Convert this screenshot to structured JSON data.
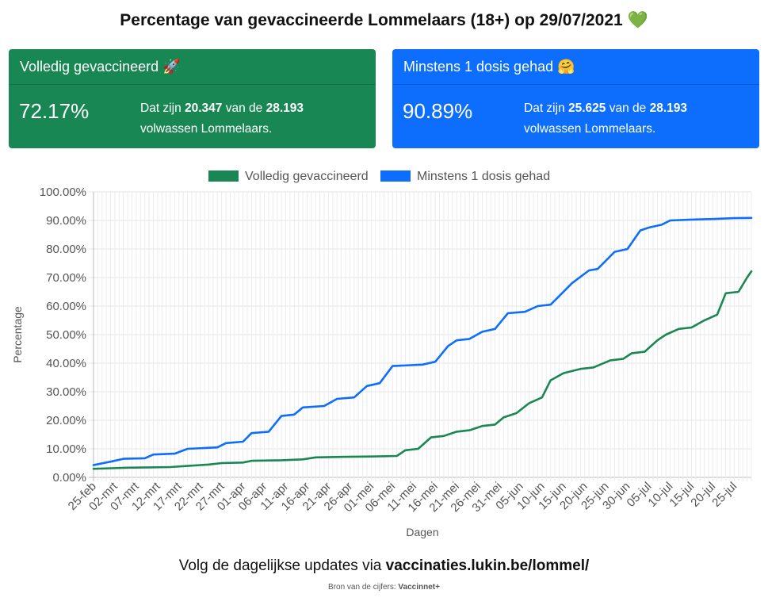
{
  "header": {
    "title": "Percentage van gevaccineerde Lommelaars (18+) op 29/07/2021",
    "title_icon": "💚"
  },
  "cards": [
    {
      "header": "Volledig gevaccineerd",
      "icon": "🚀",
      "percentage": "72.17%",
      "text_prefix": "Dat zijn",
      "count": "20.347",
      "text_middle": "van de",
      "total": "28.193",
      "text_suffix": "volwassen Lommelaars.",
      "color": "#198754"
    },
    {
      "header": "Minstens 1 dosis gehad",
      "icon": "🤗",
      "percentage": "90.89%",
      "text_prefix": "Dat zijn",
      "count": "25.625",
      "text_middle": "van de",
      "total": "28.193",
      "text_suffix": "volwassen Lommelaars.",
      "color": "#0d6efd"
    }
  ],
  "footer": {
    "line1_prefix": "Volg de dagelijkse updates via",
    "line1_link": "vaccinaties.lukin.be/lommel/",
    "line2_prefix": "Bron van de cijfers:",
    "line2_source": "Vaccinnet+"
  },
  "chart_data": {
    "type": "line",
    "title": "",
    "xlabel": "Dagen",
    "ylabel": "Percentage",
    "ylim": [
      0,
      100
    ],
    "y_ticks": [
      "0.00%",
      "10.00%",
      "20.00%",
      "30.00%",
      "40.00%",
      "50.00%",
      "60.00%",
      "70.00%",
      "80.00%",
      "90.00%",
      "100.00%"
    ],
    "x_ticks": [
      "25-feb",
      "02-mrt",
      "07-mrt",
      "12-mrt",
      "17-mrt",
      "22-mrt",
      "27-mrt",
      "01-apr",
      "06-apr",
      "11-apr",
      "16-apr",
      "21-apr",
      "26-apr",
      "01-mei",
      "06-mei",
      "11-mei",
      "16-mei",
      "21-mei",
      "26-mei",
      "31-mei",
      "05-jun",
      "10-jun",
      "15-jun",
      "20-jun",
      "25-jun",
      "30-jun",
      "05-jul",
      "10-jul",
      "15-jul",
      "20-jul",
      "25-jul"
    ],
    "x_range": [
      "2021-02-25",
      "2021-07-29"
    ],
    "grid": true,
    "legend_position": "top",
    "series": [
      {
        "name": "Volledig gevaccineerd",
        "color": "#198754",
        "points": [
          [
            "2021-02-25",
            3.0
          ],
          [
            "2021-03-01",
            3.2
          ],
          [
            "2021-03-05",
            3.4
          ],
          [
            "2021-03-10",
            3.5
          ],
          [
            "2021-03-15",
            3.6
          ],
          [
            "2021-03-19",
            4.0
          ],
          [
            "2021-03-24",
            4.5
          ],
          [
            "2021-03-27",
            5.0
          ],
          [
            "2021-04-01",
            5.2
          ],
          [
            "2021-04-03",
            5.8
          ],
          [
            "2021-04-10",
            6.0
          ],
          [
            "2021-04-15",
            6.3
          ],
          [
            "2021-04-18",
            7.0
          ],
          [
            "2021-04-25",
            7.2
          ],
          [
            "2021-05-01",
            7.3
          ],
          [
            "2021-05-07",
            7.5
          ],
          [
            "2021-05-09",
            9.5
          ],
          [
            "2021-05-12",
            10.0
          ],
          [
            "2021-05-15",
            14.0
          ],
          [
            "2021-05-18",
            14.5
          ],
          [
            "2021-05-21",
            16.0
          ],
          [
            "2021-05-24",
            16.5
          ],
          [
            "2021-05-27",
            18.0
          ],
          [
            "2021-05-30",
            18.5
          ],
          [
            "2021-06-01",
            21.0
          ],
          [
            "2021-06-04",
            22.5
          ],
          [
            "2021-06-07",
            26.0
          ],
          [
            "2021-06-10",
            28.0
          ],
          [
            "2021-06-12",
            34.0
          ],
          [
            "2021-06-15",
            36.5
          ],
          [
            "2021-06-19",
            38.0
          ],
          [
            "2021-06-22",
            38.5
          ],
          [
            "2021-06-26",
            41.0
          ],
          [
            "2021-06-29",
            41.5
          ],
          [
            "2021-07-01",
            43.5
          ],
          [
            "2021-07-04",
            44.0
          ],
          [
            "2021-07-07",
            48.0
          ],
          [
            "2021-07-09",
            50.0
          ],
          [
            "2021-07-12",
            52.0
          ],
          [
            "2021-07-15",
            52.5
          ],
          [
            "2021-07-18",
            55.0
          ],
          [
            "2021-07-21",
            57.0
          ],
          [
            "2021-07-23",
            64.5
          ],
          [
            "2021-07-26",
            65.0
          ],
          [
            "2021-07-28",
            70.0
          ],
          [
            "2021-07-29",
            72.17
          ]
        ]
      },
      {
        "name": "Minstens 1 dosis gehad",
        "color": "#0d6efd",
        "points": [
          [
            "2021-02-25",
            4.3
          ],
          [
            "2021-03-01",
            5.5
          ],
          [
            "2021-03-04",
            6.5
          ],
          [
            "2021-03-09",
            6.7
          ],
          [
            "2021-03-11",
            8.0
          ],
          [
            "2021-03-16",
            8.3
          ],
          [
            "2021-03-19",
            10.0
          ],
          [
            "2021-03-26",
            10.5
          ],
          [
            "2021-03-28",
            12.0
          ],
          [
            "2021-04-01",
            12.5
          ],
          [
            "2021-04-03",
            15.5
          ],
          [
            "2021-04-07",
            16.0
          ],
          [
            "2021-04-10",
            21.5
          ],
          [
            "2021-04-13",
            22.0
          ],
          [
            "2021-04-15",
            24.5
          ],
          [
            "2021-04-20",
            25.0
          ],
          [
            "2021-04-23",
            27.5
          ],
          [
            "2021-04-27",
            28.0
          ],
          [
            "2021-04-30",
            32.0
          ],
          [
            "2021-05-03",
            33.0
          ],
          [
            "2021-05-06",
            39.0
          ],
          [
            "2021-05-13",
            39.5
          ],
          [
            "2021-05-16",
            40.5
          ],
          [
            "2021-05-19",
            46.0
          ],
          [
            "2021-05-21",
            48.0
          ],
          [
            "2021-05-24",
            48.5
          ],
          [
            "2021-05-27",
            51.0
          ],
          [
            "2021-05-30",
            52.0
          ],
          [
            "2021-06-02",
            57.5
          ],
          [
            "2021-06-06",
            58.0
          ],
          [
            "2021-06-09",
            60.0
          ],
          [
            "2021-06-12",
            60.5
          ],
          [
            "2021-06-14",
            63.5
          ],
          [
            "2021-06-17",
            68.0
          ],
          [
            "2021-06-21",
            72.5
          ],
          [
            "2021-06-23",
            73.0
          ],
          [
            "2021-06-27",
            79.0
          ],
          [
            "2021-06-30",
            80.0
          ],
          [
            "2021-07-03",
            86.5
          ],
          [
            "2021-07-05",
            87.5
          ],
          [
            "2021-07-08",
            88.5
          ],
          [
            "2021-07-10",
            90.0
          ],
          [
            "2021-07-15",
            90.3
          ],
          [
            "2021-07-20",
            90.5
          ],
          [
            "2021-07-25",
            90.8
          ],
          [
            "2021-07-29",
            90.89
          ]
        ]
      }
    ]
  }
}
